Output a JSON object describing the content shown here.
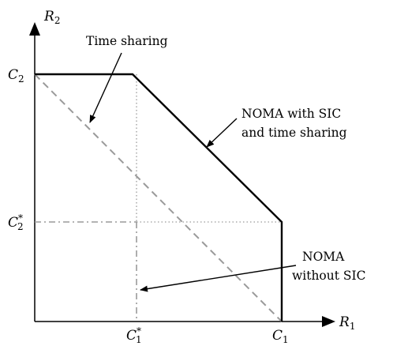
{
  "axes": {
    "y_label_base": "R",
    "y_label_sub": "2",
    "x_label_base": "R",
    "x_label_sub": "1"
  },
  "ticks": {
    "c2_base": "C",
    "c2_sub": "2",
    "c2star_base": "C",
    "c2star_sup": "*",
    "c2star_sub": "2",
    "c1star_base": "C",
    "c1star_sup": "*",
    "c1star_sub": "1",
    "c1_base": "C",
    "c1_sub": "1"
  },
  "annotations": {
    "time_sharing": "Time sharing",
    "noma_sic_line1": "NOMA with SIC",
    "noma_sic_line2": "and time sharing",
    "noma_no_sic_line1": "NOMA",
    "noma_no_sic_line2": "without SIC"
  },
  "colors": {
    "axis": "#000000",
    "noma_sic_boundary": "#000000",
    "time_sharing_line": "#9a9a9a",
    "noma_no_sic_lines": "#9a9a9a",
    "dotted_guides": "#9a9a9a",
    "arrows": "#000000"
  }
}
